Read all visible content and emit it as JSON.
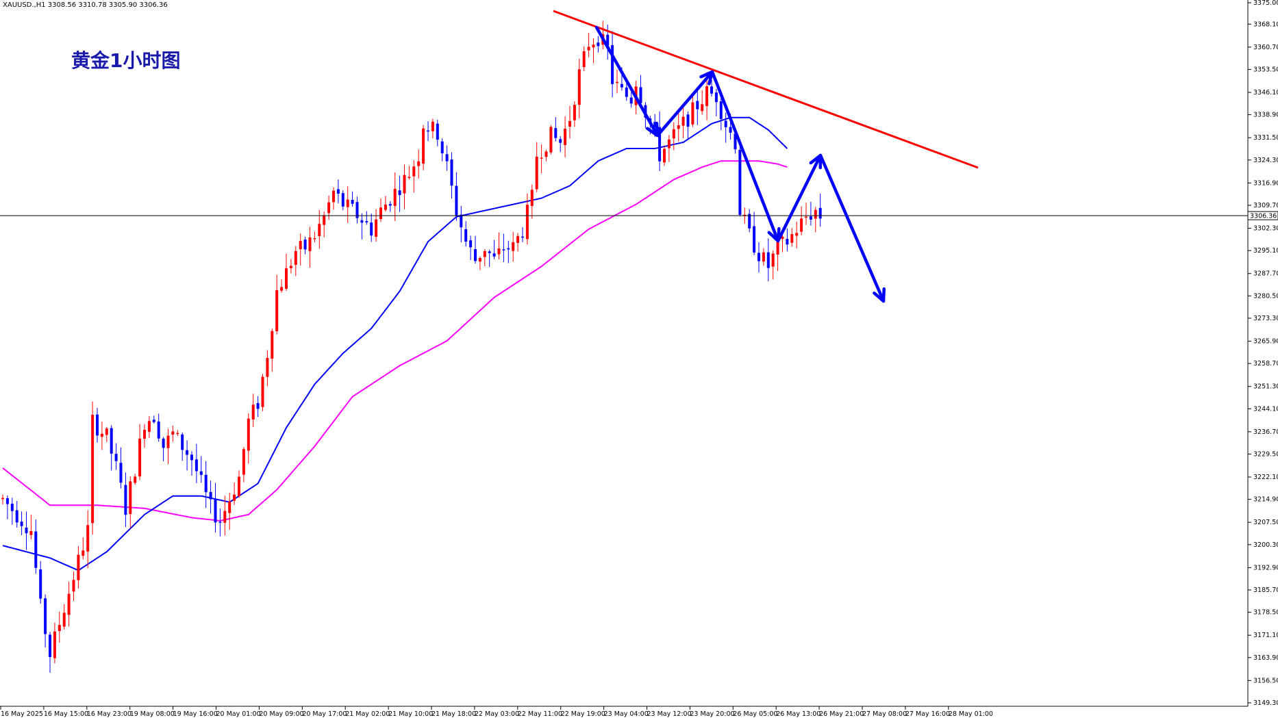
{
  "chart_data": {
    "type": "candlestick",
    "symbol_info": "XAUUSD.,H1  3308.56 3310.78 3305.90 3306.36",
    "title": "黄金1小时图",
    "colors": {
      "up": "#ff0000",
      "down": "#0000ff",
      "ma_fast": "#0000ff",
      "ma_slow": "#ff00ff",
      "trendline": "#ff0000",
      "arrows": "#0000ff",
      "title": "#1a1aaa",
      "grid_line": "#000000"
    },
    "ylim": [
      3149.3,
      3375.0
    ],
    "y_ticks": [
      "3375.00",
      "3368.10",
      "3360.70",
      "3353.50",
      "3346.10",
      "3338.90",
      "3331.50",
      "3324.30",
      "3316.90",
      "3309.70",
      "3302.30",
      "3295.10",
      "3287.70",
      "3280.50",
      "3273.30",
      "3265.90",
      "3258.70",
      "3251.30",
      "3244.10",
      "3236.70",
      "3229.50",
      "3222.10",
      "3214.90",
      "3207.50",
      "3200.30",
      "3192.90",
      "3185.70",
      "3178.50",
      "3171.10",
      "3163.90",
      "3156.50",
      "3149.30"
    ],
    "x_ticks": [
      "16 May 2025",
      "16 May 15:00",
      "16 May 23:00",
      "19 May 08:00",
      "19 May 16:00",
      "20 May 01:00",
      "20 May 09:00",
      "20 May 17:00",
      "21 May 02:00",
      "21 May 10:00",
      "21 May 18:00",
      "22 May 03:00",
      "22 May 11:00",
      "22 May 19:00",
      "23 May 04:00",
      "23 May 12:00",
      "23 May 20:00",
      "26 May 05:00",
      "26 May 13:00",
      "26 May 21:00",
      "27 May 08:00",
      "27 May 16:00",
      "28 May 01:00"
    ],
    "current_price": "3306.36",
    "candle_anchors": [
      [
        0,
        3215
      ],
      [
        6,
        3205
      ],
      [
        8,
        3180
      ],
      [
        10,
        3165
      ],
      [
        14,
        3185
      ],
      [
        16,
        3195
      ],
      [
        18,
        3205
      ],
      [
        19,
        3240
      ],
      [
        22,
        3235
      ],
      [
        24,
        3225
      ],
      [
        26,
        3212
      ],
      [
        28,
        3225
      ],
      [
        30,
        3240
      ],
      [
        32,
        3242
      ],
      [
        34,
        3232
      ],
      [
        36,
        3236
      ],
      [
        38,
        3232
      ],
      [
        40,
        3228
      ],
      [
        42,
        3220
      ],
      [
        44,
        3212
      ],
      [
        46,
        3208
      ],
      [
        48,
        3215
      ],
      [
        50,
        3222
      ],
      [
        52,
        3240
      ],
      [
        54,
        3246
      ],
      [
        56,
        3262
      ],
      [
        58,
        3282
      ],
      [
        60,
        3288
      ],
      [
        62,
        3295
      ],
      [
        64,
        3296
      ],
      [
        66,
        3300
      ],
      [
        68,
        3306
      ],
      [
        70,
        3314
      ],
      [
        72,
        3310
      ],
      [
        74,
        3308
      ],
      [
        76,
        3305
      ],
      [
        78,
        3302
      ],
      [
        80,
        3308
      ],
      [
        82,
        3312
      ],
      [
        84,
        3316
      ],
      [
        86,
        3320
      ],
      [
        88,
        3326
      ],
      [
        89,
        3336
      ],
      [
        92,
        3333
      ],
      [
        94,
        3322
      ],
      [
        96,
        3308
      ],
      [
        98,
        3298
      ],
      [
        100,
        3292
      ],
      [
        102,
        3296
      ],
      [
        104,
        3292
      ],
      [
        106,
        3296
      ],
      [
        108,
        3296
      ],
      [
        110,
        3302
      ],
      [
        112,
        3312
      ],
      [
        113,
        3326
      ],
      [
        116,
        3332
      ],
      [
        118,
        3330
      ],
      [
        120,
        3338
      ],
      [
        122,
        3352
      ],
      [
        124,
        3362
      ],
      [
        126,
        3364
      ],
      [
        128,
        3360
      ],
      [
        129,
        3350
      ],
      [
        131,
        3346
      ],
      [
        133,
        3344
      ],
      [
        134,
        3350
      ],
      [
        136,
        3340
      ],
      [
        138,
        3332
      ],
      [
        139,
        3326
      ],
      [
        141,
        3330
      ],
      [
        143,
        3334
      ],
      [
        145,
        3338
      ],
      [
        147,
        3342
      ],
      [
        149,
        3346
      ],
      [
        151,
        3345
      ],
      [
        153,
        3336
      ],
      [
        155,
        3330
      ],
      [
        156,
        3308
      ],
      [
        158,
        3300
      ],
      [
        160,
        3294
      ],
      [
        162,
        3290
      ],
      [
        164,
        3296
      ],
      [
        166,
        3298
      ],
      [
        168,
        3302
      ],
      [
        170,
        3306
      ],
      [
        172,
        3308
      ],
      [
        173,
        3306
      ]
    ],
    "ma_fast_anchors": [
      [
        0,
        3200
      ],
      [
        10,
        3196
      ],
      [
        16,
        3192
      ],
      [
        22,
        3198
      ],
      [
        30,
        3210
      ],
      [
        36,
        3216
      ],
      [
        42,
        3216
      ],
      [
        48,
        3214
      ],
      [
        54,
        3220
      ],
      [
        60,
        3238
      ],
      [
        66,
        3252
      ],
      [
        72,
        3262
      ],
      [
        78,
        3270
      ],
      [
        84,
        3282
      ],
      [
        90,
        3298
      ],
      [
        96,
        3306
      ],
      [
        102,
        3308
      ],
      [
        108,
        3310
      ],
      [
        114,
        3312
      ],
      [
        120,
        3316
      ],
      [
        126,
        3324
      ],
      [
        132,
        3328
      ],
      [
        138,
        3328
      ],
      [
        144,
        3330
      ],
      [
        150,
        3336
      ],
      [
        154,
        3338
      ],
      [
        158,
        3338
      ],
      [
        162,
        3334
      ],
      [
        166,
        3328
      ]
    ],
    "ma_slow_anchors": [
      [
        0,
        3225
      ],
      [
        10,
        3213
      ],
      [
        20,
        3213
      ],
      [
        30,
        3212
      ],
      [
        40,
        3209
      ],
      [
        46,
        3208
      ],
      [
        52,
        3210
      ],
      [
        58,
        3218
      ],
      [
        66,
        3232
      ],
      [
        74,
        3248
      ],
      [
        84,
        3258
      ],
      [
        94,
        3266
      ],
      [
        104,
        3280
      ],
      [
        114,
        3290
      ],
      [
        124,
        3302
      ],
      [
        134,
        3310
      ],
      [
        142,
        3318
      ],
      [
        148,
        3322
      ],
      [
        152,
        3324
      ],
      [
        156,
        3324
      ],
      [
        160,
        3324
      ],
      [
        164,
        3323
      ],
      [
        166,
        3322
      ]
    ],
    "trendline": [
      [
        808,
        16
      ],
      [
        1428,
        245
      ]
    ],
    "arrows_path": [
      [
        871,
        40
      ],
      [
        960,
        198
      ],
      [
        1040,
        105
      ],
      [
        1136,
        352
      ],
      [
        1198,
        227
      ],
      [
        1290,
        440
      ]
    ]
  }
}
